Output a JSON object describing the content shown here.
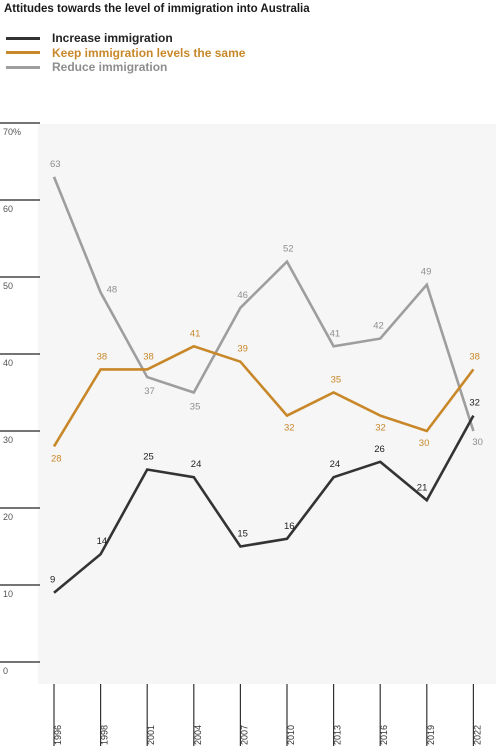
{
  "title": "Attitudes towards the level of immigration into Australia",
  "chart_data": {
    "type": "line",
    "title": "Attitudes towards the level of immigration into Australia",
    "categories": [
      "1996",
      "1998",
      "2001",
      "2004",
      "2007",
      "2010",
      "2013",
      "2016",
      "2019",
      "2022"
    ],
    "series": [
      {
        "name": "Increase immigration",
        "color": "#333333",
        "label_color": "#222222",
        "values": [
          9,
          14,
          25,
          24,
          15,
          16,
          24,
          26,
          21,
          32
        ]
      },
      {
        "name": "Keep immigration levels the same",
        "color": "#c8882a",
        "label_color": "#c8882a",
        "values": [
          28,
          38,
          38,
          41,
          39,
          32,
          35,
          32,
          30,
          38
        ]
      },
      {
        "name": "Reduce immigration",
        "color": "#9e9e9e",
        "label_color": "#8e8e8e",
        "values": [
          63,
          48,
          37,
          35,
          46,
          52,
          41,
          42,
          49,
          30
        ]
      }
    ],
    "y_ticks": [
      "70%",
      "60",
      "50",
      "40",
      "30",
      "20",
      "10",
      "0"
    ],
    "ylim": [
      0,
      70
    ],
    "grid": false,
    "legend_position": "top-left"
  }
}
